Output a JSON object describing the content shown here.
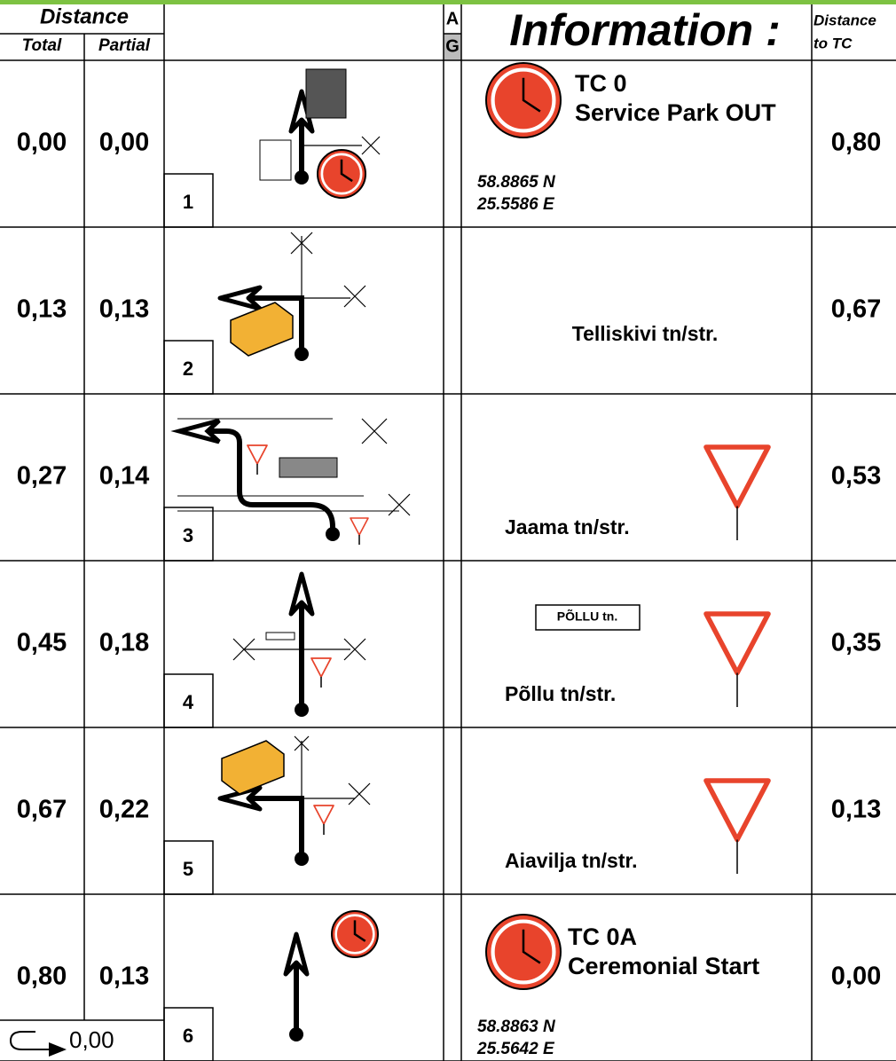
{
  "header": {
    "distance": "Distance",
    "total": "Total",
    "partial": "Partial",
    "ag_a": "A",
    "ag_g": "G",
    "information": "Information :",
    "distance_to_tc": [
      "Distance",
      "to TC"
    ]
  },
  "rows": [
    {
      "total": "0,00",
      "partial": "0,00",
      "number": "1",
      "info": [
        "TC 0",
        "Service Park OUT"
      ],
      "coords": [
        "58.8865 N",
        "25.5586 E"
      ],
      "to_tc": "0,80"
    },
    {
      "total": "0,13",
      "partial": "0,13",
      "number": "2",
      "street": "Telliskivi tn/str.",
      "to_tc": "0,67"
    },
    {
      "total": "0,27",
      "partial": "0,14",
      "number": "3",
      "street": "Jaama tn/str.",
      "to_tc": "0,53"
    },
    {
      "total": "0,45",
      "partial": "0,18",
      "number": "4",
      "sign": "PÕLLU tn.",
      "street": "Põllu tn/str.",
      "to_tc": "0,35"
    },
    {
      "total": "0,67",
      "partial": "0,22",
      "number": "5",
      "street": "Aiavilja tn/str.",
      "to_tc": "0,13"
    },
    {
      "total": "0,80",
      "partial": "0,13",
      "number": "6",
      "info": [
        "TC 0A",
        "Ceremonial Start"
      ],
      "coords": [
        "58.8863 N",
        "25.5642 E"
      ],
      "to_tc": "0,00"
    }
  ],
  "footer": {
    "reset": "0,00"
  }
}
